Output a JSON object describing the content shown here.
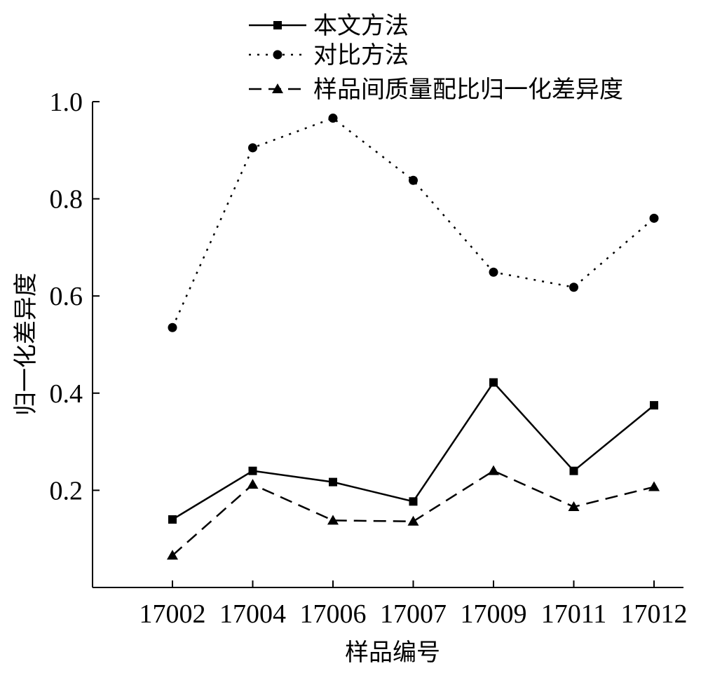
{
  "chart_data": {
    "type": "line",
    "xlabel": "样品编号",
    "ylabel": "归一化差异度",
    "categories": [
      "17002",
      "17004",
      "17006",
      "17007",
      "17009",
      "17011",
      "17012"
    ],
    "ylim": [
      0,
      1.0
    ],
    "yticks": [
      "0.2",
      "0.4",
      "0.6",
      "0.8",
      "1.0"
    ],
    "grid": false,
    "legend_position": "top",
    "series": [
      {
        "name": "本文方法",
        "values": [
          0.14,
          0.24,
          0.217,
          0.177,
          0.422,
          0.24,
          0.375
        ],
        "marker": "square",
        "line_style": "solid",
        "color": "#000000"
      },
      {
        "name": "对比方法",
        "values": [
          0.535,
          0.905,
          0.966,
          0.838,
          0.649,
          0.618,
          0.76
        ],
        "marker": "circle",
        "line_style": "dotted",
        "color": "#000000"
      },
      {
        "name": "样品间质量配比归一化差异度",
        "values": [
          0.066,
          0.212,
          0.138,
          0.136,
          0.24,
          0.166,
          0.207
        ],
        "marker": "triangle",
        "line_style": "dashed",
        "color": "#000000"
      }
    ]
  }
}
